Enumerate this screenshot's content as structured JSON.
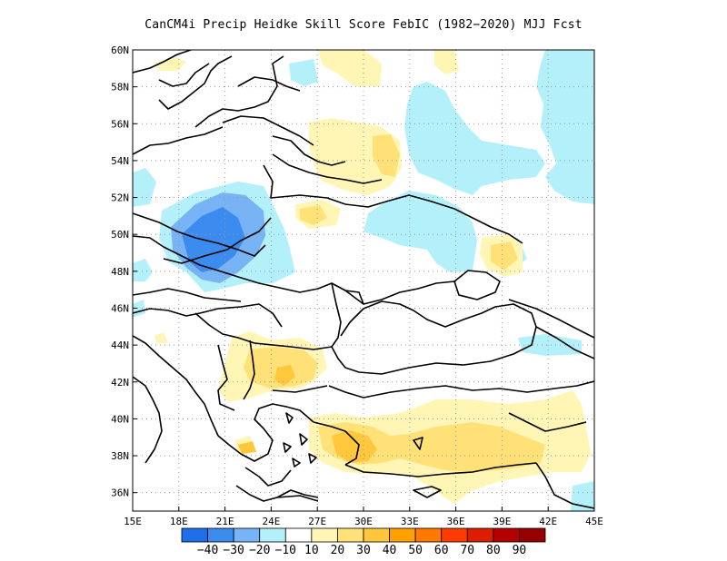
{
  "title": "CanCM4i Precip Heidke Skill Score FebIC (1982−2020) MJJ Fcst",
  "map": {
    "lon_range": [
      15,
      45
    ],
    "lat_range": [
      35,
      60
    ],
    "x_ticks": [
      "15E",
      "18E",
      "21E",
      "24E",
      "27E",
      "30E",
      "33E",
      "36E",
      "39E",
      "42E",
      "45E"
    ],
    "y_ticks": [
      "36N",
      "38N",
      "40N",
      "42N",
      "44N",
      "46N",
      "48N",
      "50N",
      "52N",
      "54N",
      "56N",
      "58N",
      "60N"
    ],
    "grid": "dotted"
  },
  "colorbar": {
    "labels": [
      "−40",
      "−30",
      "−20",
      "−10",
      "10",
      "20",
      "30",
      "40",
      "50",
      "60",
      "70",
      "80",
      "90"
    ],
    "colors": [
      "#1e6ee8",
      "#3c8cf0",
      "#78b4f5",
      "#b4f0fa",
      "#ffffff",
      "#fff5b4",
      "#ffe178",
      "#ffc83c",
      "#ffa000",
      "#ff7800",
      "#ff3c00",
      "#dc1e00",
      "#b40000",
      "#960000"
    ]
  },
  "skill_regions": [
    {
      "level": "-30",
      "color": "#3c8cf0"
    },
    {
      "level": "-20",
      "color": "#78b4f5"
    },
    {
      "level": "-10",
      "color": "#b4f0fa"
    },
    {
      "level": "10",
      "color": "#fff5b4"
    },
    {
      "level": "20",
      "color": "#ffe178"
    },
    {
      "level": "30",
      "color": "#ffc83c"
    }
  ]
}
